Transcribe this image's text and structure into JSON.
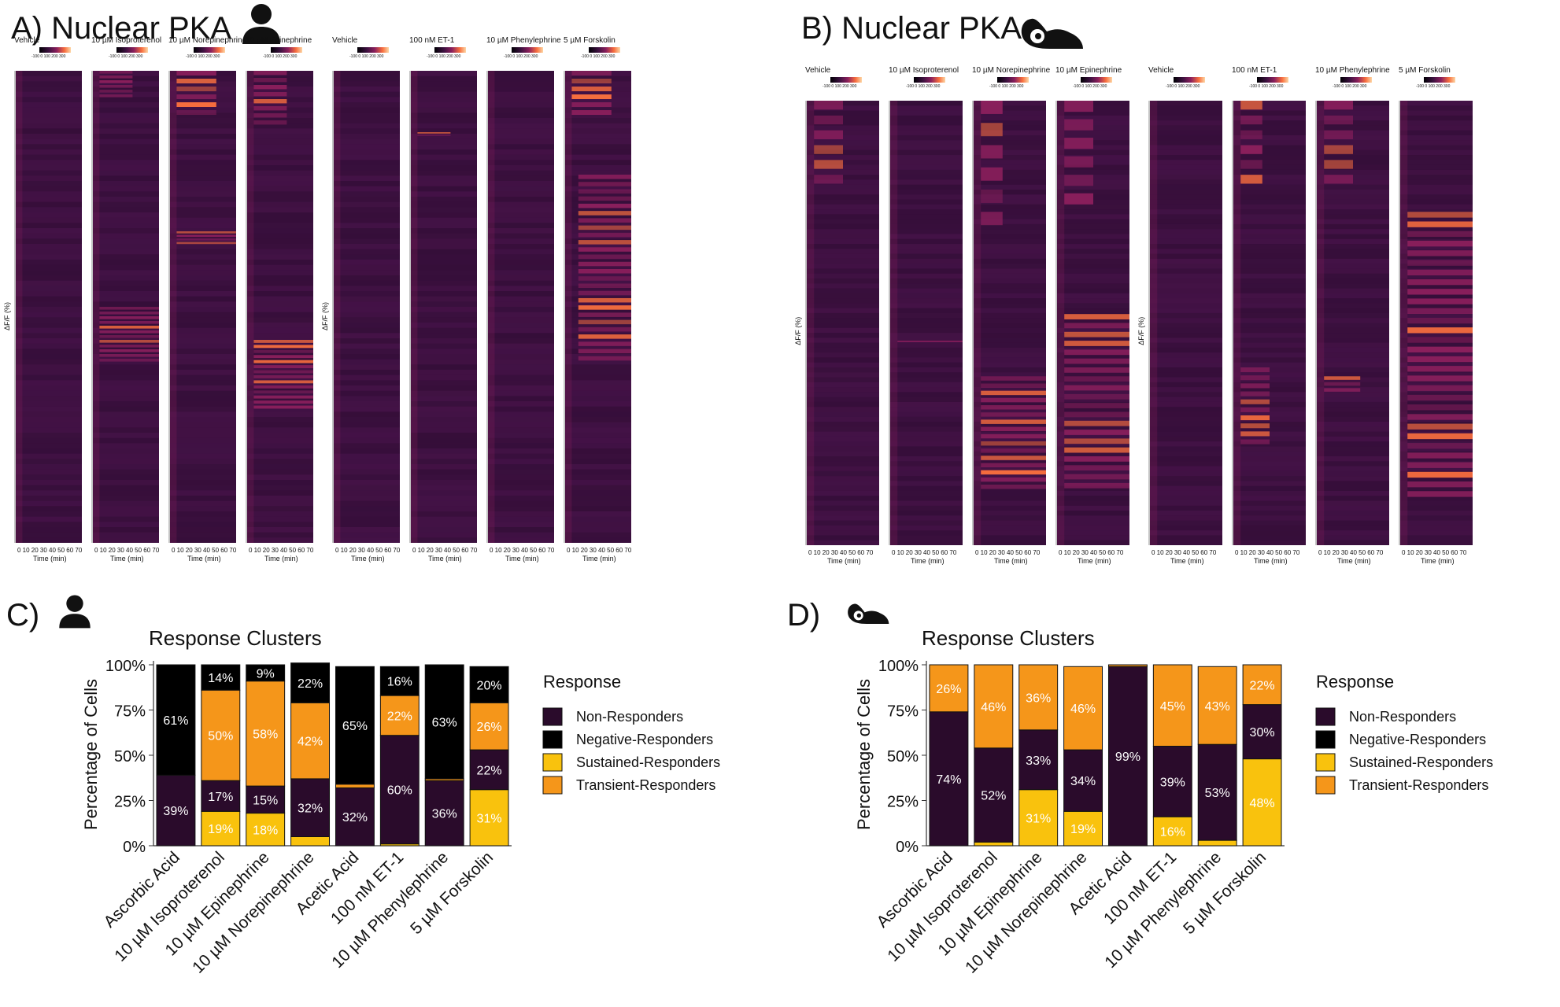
{
  "colors": {
    "non_responders": "#2a0b2b",
    "negative_responders": "#000000",
    "sustained_responders": "#f9c20d",
    "transient_responders": "#f5961a",
    "heatmap_base": "#3d1140",
    "heatmap_mid": "#8a1f5c",
    "heatmap_high": "#f76e3e",
    "heatmap_peak": "#fdd7a5"
  },
  "panelA": {
    "title": "A) Nuclear PKA",
    "icon": "human-person-icon",
    "ylabel": "ΔF/F (%)",
    "xlabel": "Time (min)",
    "ticks": "0 10 20 30 40 50 60 70",
    "scale_ticks": "-100  0  100 200 300",
    "treatments": [
      "Vehicle",
      "10 µM Isoproterenol",
      "10 µM Norepinephrine",
      "10 µM Epinephrine",
      "Vehicle",
      "100 nM ET-1",
      "10 µM Phenylephrine",
      "5 µM Forskolin"
    ]
  },
  "panelB": {
    "title": "B) Nuclear PKA",
    "icon": "mouse-rodent-icon",
    "ylabel": "ΔF/F (%)",
    "xlabel": "Time (min)",
    "ticks": "0 10 20 30 40 50 60 70",
    "scale_ticks": "-100  0  100 200 300",
    "treatments": [
      "Vehicle",
      "10 µM Isoproterenol",
      "10 µM Norepinephrine",
      "10 µM Epinephrine",
      "Vehicle",
      "100 nM ET-1",
      "10 µM Phenylephrine",
      "5 µM Forskolin"
    ]
  },
  "panelC": {
    "label": "C)",
    "icon": "human-person-icon"
  },
  "panelD": {
    "label": "D)",
    "icon": "mouse-rodent-icon"
  },
  "chart_data": [
    {
      "type": "bar",
      "stacked": true,
      "panel": "C",
      "title": "Response Clusters",
      "ylabel": "Percentage of Cells",
      "xlabel": "",
      "ylim": [
        0,
        100
      ],
      "yticks": [
        "0%",
        "25%",
        "50%",
        "75%",
        "100%"
      ],
      "categories": [
        "Ascorbic Acid",
        "10 µM Isoproterenol",
        "10 µM Epinephrine",
        "10 µM Norepinephrine",
        "Acetic Acid",
        "100 nM ET-1",
        "10 µM Phenylephrine",
        "5 µM Forskolin"
      ],
      "series": [
        {
          "name": "Sustained-Responders",
          "values": [
            0,
            19,
            18,
            5,
            0,
            1,
            0,
            31
          ],
          "labels": [
            "",
            "19%",
            "18%",
            "",
            "",
            "",
            "",
            "31%"
          ]
        },
        {
          "name": "Non-Responders",
          "values": [
            39,
            17,
            15,
            32,
            32,
            60,
            36,
            22
          ],
          "labels": [
            "39%",
            "17%",
            "15%",
            "32%",
            "32%",
            "60%",
            "36%",
            "22%"
          ]
        },
        {
          "name": "Transient-Responders",
          "values": [
            0,
            50,
            58,
            42,
            2,
            22,
            1,
            26
          ],
          "labels": [
            "",
            "50%",
            "58%",
            "42%",
            "",
            "22%",
            "",
            "26%"
          ]
        },
        {
          "name": "Negative-Responders",
          "values": [
            61,
            14,
            9,
            22,
            65,
            16,
            63,
            20
          ],
          "labels": [
            "61%",
            "14%",
            "9%",
            "22%",
            "65%",
            "16%",
            "63%",
            "20%"
          ]
        }
      ],
      "legend": {
        "title": "Response",
        "entries": [
          "Non-Responders",
          "Negative-Responders",
          "Sustained-Responders",
          "Transient-Responders"
        ],
        "position": "right"
      }
    },
    {
      "type": "bar",
      "stacked": true,
      "panel": "D",
      "title": "Response Clusters",
      "ylabel": "Percentage of Cells",
      "xlabel": "",
      "ylim": [
        0,
        100
      ],
      "yticks": [
        "0%",
        "25%",
        "50%",
        "75%",
        "100%"
      ],
      "categories": [
        "Ascorbic Acid",
        "10 µM Isoproterenol",
        "10 µM Epinephrine",
        "10 µM Norepinephrine",
        "Acetic Acid",
        "100 nM ET-1",
        "10 µM Phenylephrine",
        "5 µM Forskolin"
      ],
      "series": [
        {
          "name": "Sustained-Responders",
          "values": [
            0,
            2,
            31,
            19,
            0,
            16,
            3,
            48
          ],
          "labels": [
            "",
            "",
            "31%",
            "19%",
            "",
            "16%",
            "",
            "48%"
          ]
        },
        {
          "name": "Non-Responders",
          "values": [
            74,
            52,
            33,
            34,
            99,
            39,
            53,
            30
          ],
          "labels": [
            "74%",
            "52%",
            "33%",
            "34%",
            "99%",
            "39%",
            "53%",
            "30%"
          ]
        },
        {
          "name": "Transient-Responders",
          "values": [
            26,
            46,
            36,
            46,
            1,
            45,
            43,
            22
          ],
          "labels": [
            "26%",
            "46%",
            "36%",
            "46%",
            "",
            "45%",
            "43%",
            "22%"
          ]
        },
        {
          "name": "Negative-Responders",
          "values": [
            0,
            0,
            0,
            0,
            0,
            0,
            0,
            0
          ],
          "labels": [
            "",
            "",
            "",
            "",
            "",
            "",
            "",
            ""
          ]
        }
      ],
      "legend": {
        "title": "Response",
        "entries": [
          "Non-Responders",
          "Negative-Responders",
          "Sustained-Responders",
          "Transient-Responders"
        ],
        "position": "right"
      }
    }
  ]
}
